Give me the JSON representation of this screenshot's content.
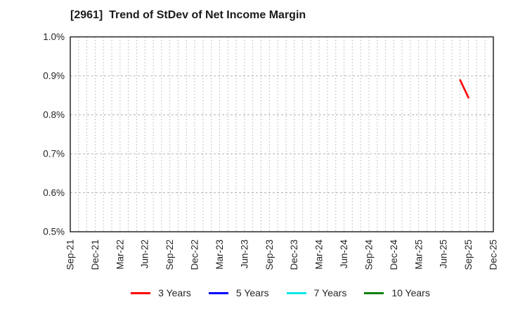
{
  "chart_data": {
    "type": "line",
    "title": "[2961]  Trend of StDev of Net Income Margin",
    "x_axis": {
      "start_month": "Sep-21",
      "end_month": "Dec-25",
      "tick_interval_months": 3,
      "minor_gridlines": "monthly",
      "tick_labels": [
        "Sep-21",
        "Dec-21",
        "Mar-22",
        "Jun-22",
        "Sep-22",
        "Dec-22",
        "Mar-23",
        "Jun-23",
        "Sep-23",
        "Dec-23",
        "Mar-24",
        "Jun-24",
        "Sep-24",
        "Dec-24",
        "Mar-25",
        "Jun-25",
        "Sep-25",
        "Dec-25"
      ]
    },
    "y_axis": {
      "min": 0.5,
      "max": 1.0,
      "unit": "%",
      "tick_labels": [
        "1.0%",
        "0.9%",
        "0.8%",
        "0.7%",
        "0.6%",
        "0.5%"
      ]
    },
    "grid": true,
    "legend_position": "bottom",
    "series": [
      {
        "name": "3 Years",
        "color": "#ff0000",
        "points": [
          {
            "x": "Aug-25",
            "y": 0.889
          },
          {
            "x": "Sep-25",
            "y": 0.844
          }
        ]
      },
      {
        "name": "5 Years",
        "color": "#0000ff",
        "points": []
      },
      {
        "name": "7 Years",
        "color": "#00e8e8",
        "points": []
      },
      {
        "name": "10 Years",
        "color": "#0c830c",
        "points": []
      }
    ]
  },
  "colors": {
    "axis_border": "#333333",
    "grid_line": "#b3b3b3",
    "tick_text": "#262626",
    "title_text": "#1a1a1a",
    "background": "#ffffff"
  }
}
